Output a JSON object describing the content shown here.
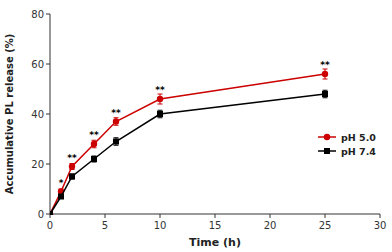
{
  "chart_data": {
    "type": "line",
    "xlabel": "Time (h)",
    "ylabel": "Accumulative PL release (%)",
    "xlim": [
      0,
      30
    ],
    "ylim": [
      0,
      80
    ],
    "xticks": [
      0,
      5,
      10,
      15,
      20,
      25,
      30
    ],
    "yticks": [
      0,
      20,
      40,
      60,
      80
    ],
    "grid": false,
    "legend": "right",
    "x": [
      0,
      1,
      2,
      4,
      6,
      10,
      25
    ],
    "series": [
      {
        "name": "pH 5.0",
        "color": "#cc0000",
        "marker": "circle",
        "line_style": "solid",
        "values": [
          0,
          9,
          19,
          28,
          37,
          46,
          56
        ],
        "errors": [
          0,
          1.0,
          1.2,
          1.5,
          1.5,
          2.0,
          2.0
        ]
      },
      {
        "name": "pH 7.4",
        "color": "#000000",
        "marker": "square",
        "line_style": "solid",
        "values": [
          0,
          7,
          15,
          22,
          29,
          40,
          48
        ],
        "errors": [
          0,
          0.8,
          1.0,
          1.2,
          1.5,
          1.5,
          1.5
        ]
      }
    ],
    "annotations": [
      {
        "x": 1,
        "y": 9,
        "text": "*"
      },
      {
        "x": 2,
        "y": 19,
        "text": "**"
      },
      {
        "x": 4,
        "y": 28,
        "text": "**"
      },
      {
        "x": 6,
        "y": 37,
        "text": "**"
      },
      {
        "x": 10,
        "y": 46,
        "text": "**"
      },
      {
        "x": 25,
        "y": 56,
        "text": "**"
      }
    ]
  }
}
